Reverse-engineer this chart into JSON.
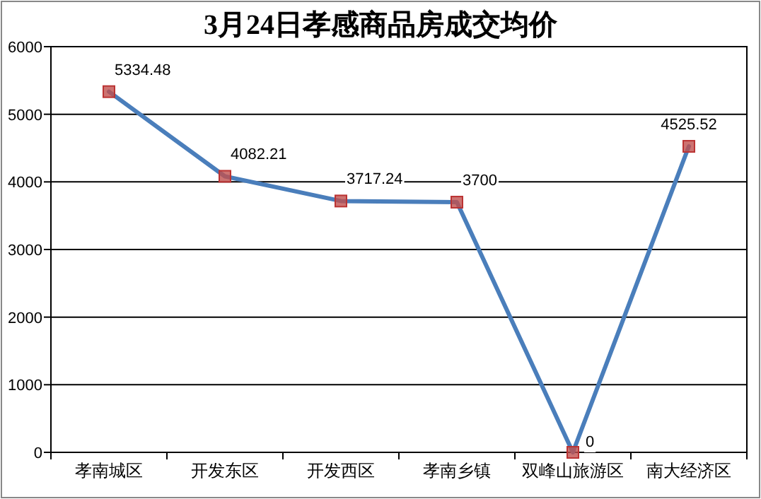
{
  "chart_data": {
    "type": "line",
    "title": "3月24日孝感商品房成交均价",
    "categories": [
      "孝南城区",
      "开发东区",
      "开发西区",
      "孝南乡镇",
      "双峰山旅游区",
      "南大经济区"
    ],
    "series": [
      {
        "color": "#4a7ebb",
        "values": [
          5334.48,
          4082.21,
          3717.24,
          3700,
          0,
          4525.52
        ]
      }
    ],
    "ylim": [
      0,
      6000
    ],
    "yticks": [
      0,
      1000,
      2000,
      3000,
      4000,
      5000,
      6000
    ],
    "grid": "y",
    "marker": "square",
    "line_style": "solid",
    "data_labels": true
  }
}
